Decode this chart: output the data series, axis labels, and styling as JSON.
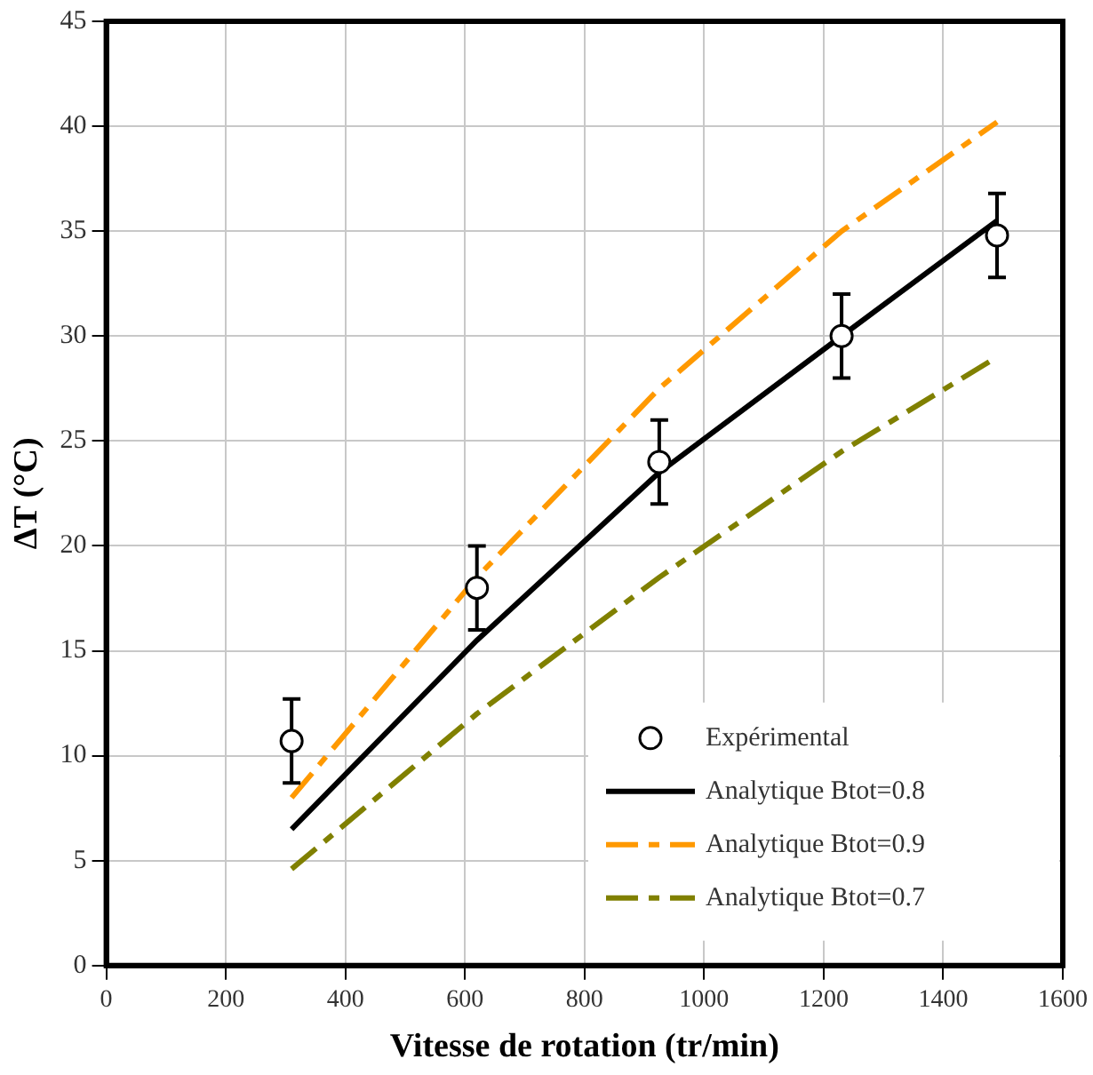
{
  "chart_data": {
    "type": "line",
    "xlabel": "Vitesse de rotation (tr/min)",
    "ylabel": "ΔT (°C)",
    "xlim": [
      0,
      1600
    ],
    "xticks": [
      0,
      200,
      400,
      600,
      800,
      1000,
      1200,
      1400,
      1600
    ],
    "ylim": [
      0,
      45
    ],
    "yticks": [
      0,
      5,
      10,
      15,
      20,
      25,
      30,
      35,
      40,
      45
    ],
    "grid": true,
    "legend": "bottom right",
    "series": [
      {
        "name": "Expérimental",
        "type": "scatter",
        "marker": "circle",
        "color": "#000000",
        "x": [
          310,
          620,
          925,
          1230,
          1490
        ],
        "values": [
          10.7,
          18,
          24,
          30,
          34.8
        ],
        "errors": [
          2,
          2,
          2,
          2,
          2
        ]
      },
      {
        "name": "Analytique Btot=0.8",
        "type": "line",
        "marker": "none",
        "line_style": "solid",
        "color": "#000000",
        "x": [
          310,
          620,
          925,
          1230,
          1490
        ],
        "values": [
          6.5,
          15.5,
          23.5,
          30,
          35.5
        ]
      },
      {
        "name": "Analytique Btot=0.9",
        "type": "line",
        "marker": "none",
        "line_style": "dashed",
        "color": "#ff9900",
        "x": [
          310,
          620,
          925,
          1230,
          1490
        ],
        "values": [
          8,
          18.5,
          27.5,
          35,
          40.2
        ]
      },
      {
        "name": "Analytique Btot=0.7",
        "type": "line",
        "marker": "none",
        "line_style": "dashed",
        "color": "#808000",
        "x": [
          310,
          620,
          925,
          1230,
          1490
        ],
        "values": [
          4.6,
          12,
          18.5,
          24.5,
          29
        ]
      }
    ]
  }
}
